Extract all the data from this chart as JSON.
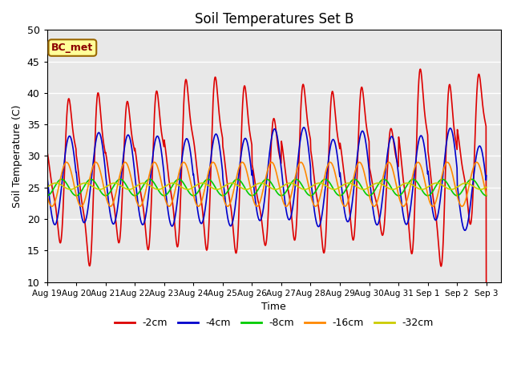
{
  "title": "Soil Temperatures Set B",
  "xlabel": "Time",
  "ylabel": "Soil Temperature (C)",
  "ylim": [
    10,
    50
  ],
  "annotation": "BC_met",
  "series": [
    {
      "label": "-2cm",
      "color": "#DD0000",
      "mean": 27.5,
      "amp": 12.5,
      "phase_shift": 0.0,
      "peaks": [
        42,
        43.5,
        41.5,
        43.5,
        45.5,
        46,
        44.5,
        38.5,
        44.5,
        43.5,
        44,
        36.5,
        47.5,
        45,
        46
      ],
      "valleys": [
        17,
        13.5,
        17,
        16,
        16.5,
        16,
        15.5,
        16.5,
        17.5,
        15.5,
        17.5,
        18,
        15.5,
        13.5,
        20
      ]
    },
    {
      "label": "-4cm",
      "color": "#0000CC",
      "mean": 26,
      "amp": 7.0,
      "phase_shift": 0.08
    },
    {
      "label": "-8cm",
      "color": "#00CC00",
      "mean": 25.0,
      "amp": 1.3,
      "phase_shift": 0.35
    },
    {
      "label": "-16cm",
      "color": "#FF8800",
      "mean": 25.5,
      "amp": 3.5,
      "phase_shift": 0.18
    },
    {
      "label": "-32cm",
      "color": "#CCCC00",
      "mean": 25.2,
      "amp": 0.5,
      "phase_shift": 0.55
    }
  ],
  "tick_labels": [
    "Aug 19",
    "Aug 20",
    "Aug 21",
    "Aug 22",
    "Aug 23",
    "Aug 24",
    "Aug 25",
    "Aug 26",
    "Aug 27",
    "Aug 28",
    "Aug 29",
    "Aug 30",
    "Aug 31",
    "Sep 1",
    "Sep 2",
    "Sep 3"
  ],
  "tick_positions": [
    0,
    1,
    2,
    3,
    4,
    5,
    6,
    7,
    8,
    9,
    10,
    11,
    12,
    13,
    14,
    15
  ],
  "background_color": "#E8E8E8",
  "grid_color": "#FFFFFF",
  "fig_color": "#FFFFFF",
  "n_days": 15,
  "pts_per_day": 96
}
